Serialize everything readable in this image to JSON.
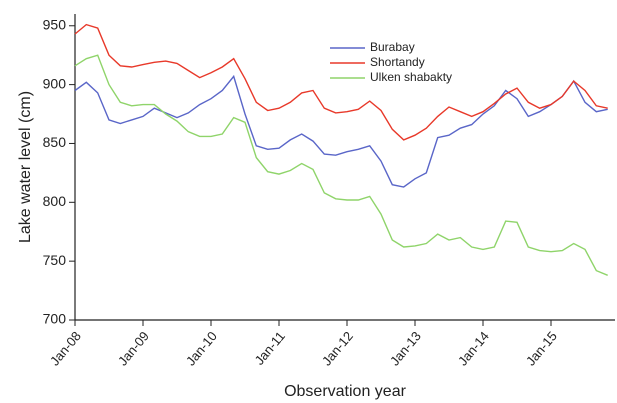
{
  "chart_data": {
    "type": "line",
    "x_label": "Observation year",
    "y_label": "Lake water level (cm)",
    "categories": [
      "Jan-08",
      null,
      null,
      null,
      null,
      null,
      "Jan-09",
      null,
      null,
      null,
      null,
      null,
      "Jan-10",
      null,
      null,
      null,
      null,
      null,
      "Jan-11",
      null,
      null,
      null,
      null,
      null,
      "Jan-12",
      null,
      null,
      null,
      null,
      null,
      "Jan-13",
      null,
      null,
      null,
      null,
      null,
      "Jan-14",
      null,
      null,
      null,
      null,
      null,
      "Jan-15",
      null,
      null,
      null,
      null,
      null
    ],
    "series": [
      {
        "name": "Burabay",
        "color": "#5a66c8",
        "values": [
          895,
          902,
          893,
          870,
          867,
          870,
          873,
          880,
          876,
          872,
          876,
          883,
          888,
          895,
          907,
          875,
          848,
          845,
          846,
          853,
          858,
          852,
          841,
          840,
          843,
          845,
          848,
          835,
          815,
          813,
          820,
          825,
          855,
          857,
          863,
          866,
          875,
          882,
          895,
          888,
          873,
          877,
          883,
          890,
          903,
          885,
          877,
          879
        ]
      },
      {
        "name": "Shortandy",
        "color": "#e8392a",
        "values": [
          943,
          951,
          948,
          925,
          916,
          915,
          917,
          919,
          920,
          918,
          912,
          906,
          910,
          915,
          922,
          905,
          885,
          878,
          880,
          885,
          893,
          895,
          880,
          876,
          877,
          879,
          886,
          878,
          862,
          853,
          857,
          863,
          873,
          881,
          877,
          873,
          877,
          884,
          892,
          897,
          885,
          880,
          883,
          890,
          903,
          895,
          882,
          880
        ]
      },
      {
        "name": "Ulken shabakty",
        "color": "#8fd46a",
        "values": [
          916,
          922,
          925,
          900,
          885,
          882,
          883,
          883,
          875,
          869,
          860,
          856,
          856,
          858,
          872,
          868,
          838,
          826,
          824,
          827,
          833,
          828,
          808,
          803,
          802,
          802,
          805,
          790,
          768,
          762,
          763,
          765,
          773,
          768,
          770,
          762,
          760,
          762,
          784,
          783,
          762,
          759,
          758,
          759,
          765,
          760,
          742,
          738
        ]
      }
    ],
    "ylim": [
      700,
      960
    ],
    "yticks": [
      700,
      750,
      800,
      850,
      900,
      950
    ]
  }
}
